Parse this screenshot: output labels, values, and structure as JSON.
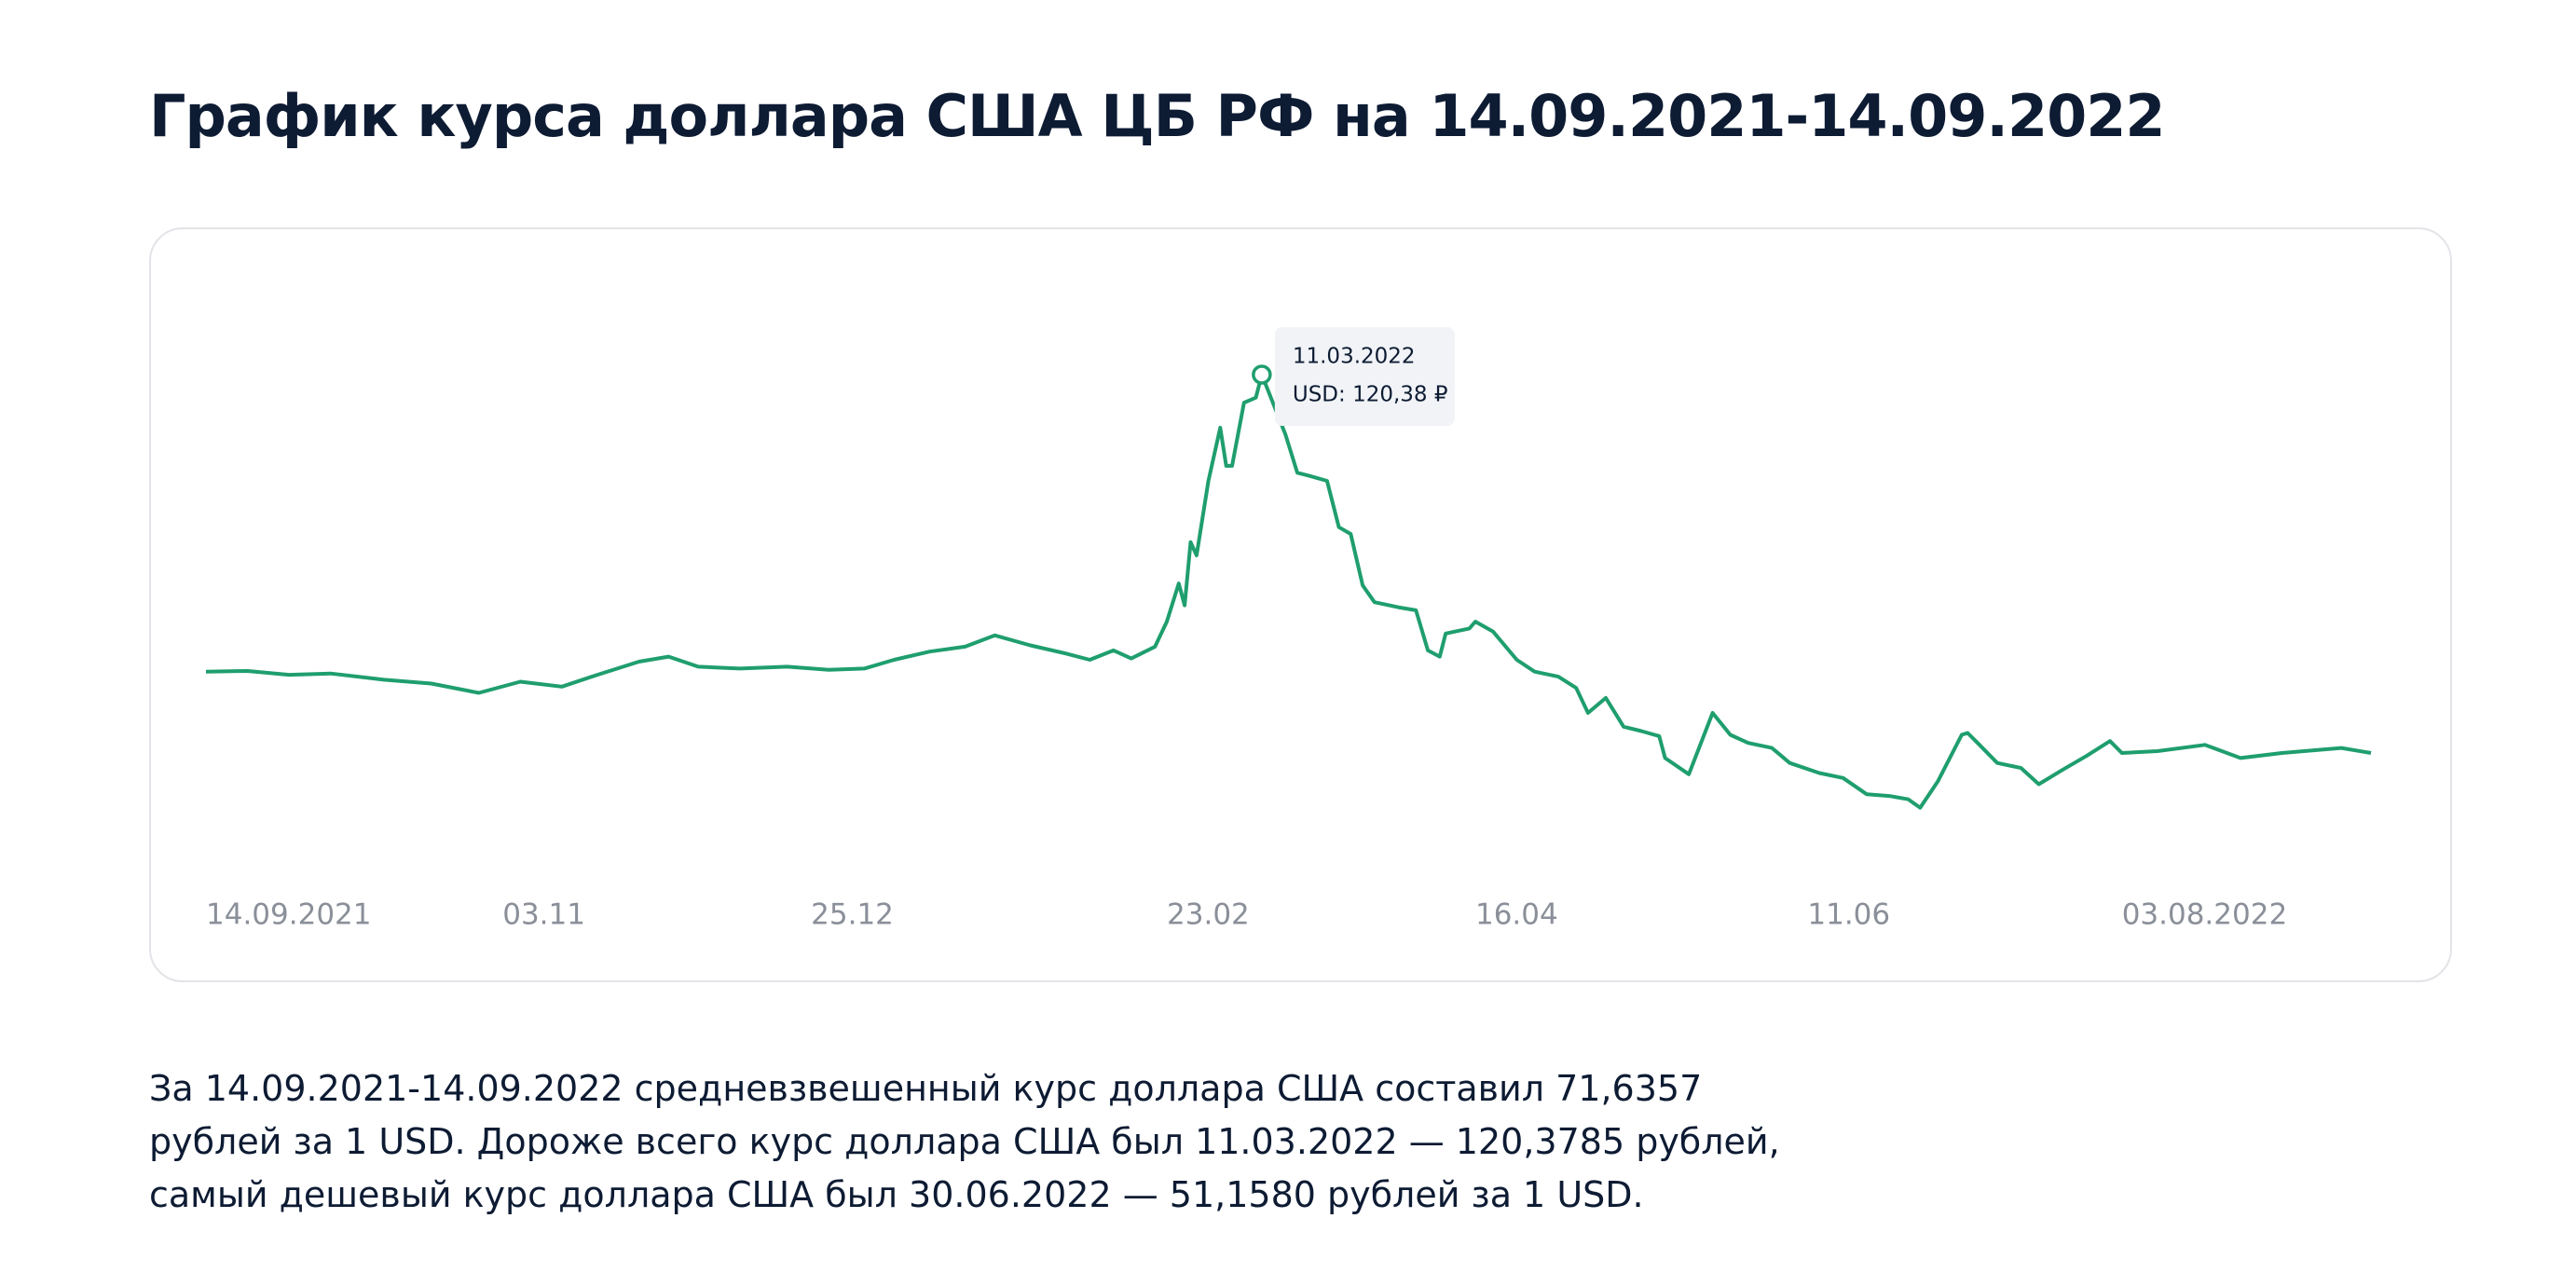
{
  "heading": "График курса доллара США ЦБ РФ на 14.09.2021-14.09.2022",
  "summary": [
    "За 14.09.2021-14.09.2022 средневзвешенный курс доллара США составил 71,6357",
    "рублей за 1 USD. Дороже всего курс доллара США был 11.03.2022 — 120,3785 рублей,",
    "самый дешевый курс доллара США был 30.06.2022 — 51,1580 рублей за 1 USD."
  ],
  "chart_data": {
    "type": "line",
    "x": [
      "14.09.2021",
      "21.09.2021",
      "28.09.2021",
      "05.10.2021",
      "14.10.2021",
      "22.10.2021",
      "30.10.2021",
      "06.11.2021",
      "13.11.2021",
      "19.11.2021",
      "26.11.2021",
      "01.12.2021",
      "06.12.2021",
      "13.12.2021",
      "21.12.2021",
      "28.12.2021",
      "03.01.2022",
      "08.01.2022",
      "14.01.2022",
      "20.01.2022",
      "25.01.2022",
      "31.01.2022",
      "06.02.2022",
      "10.02.2022",
      "14.02.2022",
      "17.02.2022",
      "21.02.2022",
      "23.02.2022",
      "25.02.2022",
      "26.02.2022",
      "27.02.2022",
      "28.02.2022",
      "02.03.2022",
      "04.03.2022",
      "05.03.2022",
      "06.03.2022",
      "08.03.2022",
      "10.03.2022",
      "11.03.2022",
      "15.03.2022",
      "17.03.2022",
      "19.03.2022",
      "22.03.2022",
      "24.03.2022",
      "26.03.2022",
      "28.03.2022",
      "30.03.2022",
      "03.04.2022",
      "06.04.2022",
      "08.04.2022",
      "10.04.2022",
      "11.04.2022",
      "15.04.2022",
      "16.04.2022",
      "19.04.2022",
      "23.04.2022",
      "26.04.2022",
      "30.04.2022",
      "03.05.2022",
      "05.05.2022",
      "08.05.2022",
      "11.05.2022",
      "14.05.2022",
      "17.05.2022",
      "18.05.2022",
      "22.05.2022",
      "26.05.2022",
      "29.05.2022",
      "01.06.2022",
      "05.06.2022",
      "08.06.2022",
      "13.06.2022",
      "17.06.2022",
      "21.06.2022",
      "25.06.2022",
      "28.06.2022",
      "30.06.2022",
      "03.07.2022",
      "07.07.2022",
      "08.07.2022",
      "10.07.2022",
      "13.07.2022",
      "17.07.2022",
      "20.07.2022",
      "24.07.2022",
      "28.07.2022",
      "01.08.2022",
      "03.08.2022",
      "09.08.2022",
      "17.08.2022",
      "23.08.2022",
      "30.08.2022",
      "09.09.2022",
      "14.09.2022"
    ],
    "series": [
      {
        "name": "USD",
        "color": "#1f9e6e",
        "values": [
          72.9,
          73.0,
          72.4,
          72.6,
          71.6,
          71.0,
          69.5,
          71.3,
          70.5,
          72.4,
          74.5,
          75.3,
          73.7,
          73.4,
          73.7,
          73.2,
          73.4,
          74.8,
          76.1,
          76.9,
          78.7,
          77.1,
          75.8,
          74.8,
          76.3,
          75.0,
          76.9,
          80.9,
          87.0,
          83.5,
          93.6,
          91.5,
          103.4,
          111.9,
          105.8,
          105.8,
          115.9,
          116.7,
          120.3785,
          110.8,
          104.7,
          104.2,
          103.4,
          96.0,
          94.9,
          86.7,
          84.0,
          83.2,
          82.7,
          76.3,
          75.3,
          79.0,
          79.8,
          80.9,
          79.3,
          74.8,
          72.9,
          72.1,
          70.3,
          66.3,
          68.7,
          64.1,
          63.4,
          62.6,
          59.1,
          56.5,
          66.3,
          62.8,
          61.5,
          60.7,
          58.3,
          56.7,
          55.9,
          53.3,
          53.0,
          52.5,
          51.158,
          55.4,
          62.8,
          63.1,
          61.2,
          58.3,
          57.5,
          54.9,
          57.2,
          59.4,
          61.8,
          59.9,
          60.2,
          61.2,
          59.1,
          59.9,
          60.7,
          59.9
        ]
      }
    ],
    "xlim": [
      "14.09.2021",
      "14.09.2022"
    ],
    "xticks": [
      "14.09.2021",
      {
        "value": "03.11.2021",
        "label": "03.11"
      },
      {
        "value": "25.12.2021",
        "label": "25.12"
      },
      {
        "value": "23.02.2022",
        "label": "23.02"
      },
      {
        "value": "16.04.2022",
        "label": "16.04"
      },
      {
        "value": "11.06.2022",
        "label": "11.06"
      },
      "03.08.2022"
    ],
    "ylim": [
      45,
      125
    ],
    "tooltip_label": "USD: 120,38 ₽"
  }
}
